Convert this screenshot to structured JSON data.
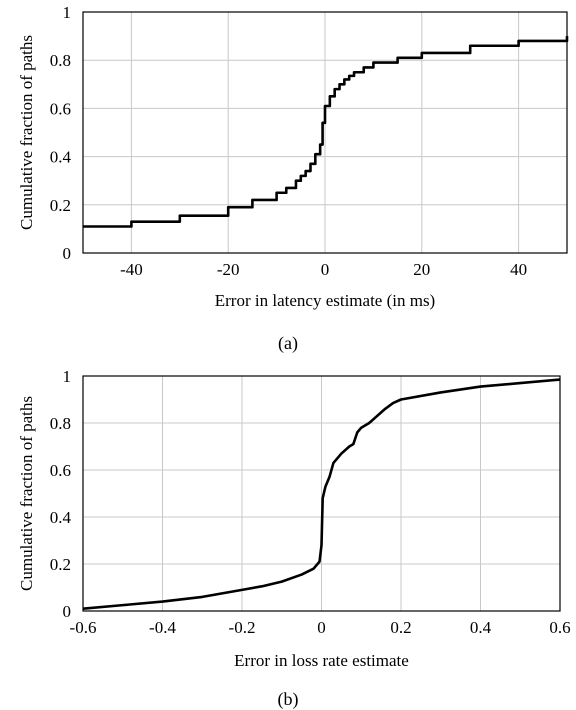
{
  "chart_data": [
    {
      "type": "line",
      "panel_label": "(a)",
      "xlabel": "Error in latency estimate (in ms)",
      "ylabel": "Cumulative fraction of paths",
      "xlim": [
        -50,
        50
      ],
      "ylim": [
        0,
        1
      ],
      "xticks": [
        -40,
        -20,
        0,
        20,
        40
      ],
      "xtick_labels": [
        "-40",
        "-20",
        "0",
        "20",
        "40"
      ],
      "yticks": [
        0,
        0.2,
        0.4,
        0.6,
        0.8,
        1
      ],
      "ytick_labels": [
        "0",
        "0.2",
        "0.4",
        "0.6",
        "0.8",
        "1"
      ],
      "grid": true,
      "step": true,
      "series": [
        {
          "x": [
            -50,
            -40,
            -30,
            -20,
            -15,
            -10,
            -8,
            -6,
            -5,
            -4,
            -3,
            -2,
            -1,
            -0.5,
            0,
            1,
            2,
            3,
            4,
            5,
            6,
            8,
            10,
            15,
            20,
            30,
            40,
            50
          ],
          "y": [
            0.11,
            0.13,
            0.155,
            0.19,
            0.22,
            0.25,
            0.27,
            0.3,
            0.32,
            0.34,
            0.37,
            0.41,
            0.45,
            0.54,
            0.61,
            0.65,
            0.68,
            0.7,
            0.72,
            0.735,
            0.75,
            0.77,
            0.79,
            0.81,
            0.83,
            0.86,
            0.88,
            0.9
          ]
        }
      ]
    },
    {
      "type": "line",
      "panel_label": "(b)",
      "xlabel": "Error in loss rate estimate",
      "ylabel": "Cumulative fraction of paths",
      "xlim": [
        -0.6,
        0.6
      ],
      "ylim": [
        0,
        1
      ],
      "xticks": [
        -0.6,
        -0.4,
        -0.2,
        0,
        0.2,
        0.4,
        0.6
      ],
      "xtick_labels": [
        "-0.6",
        "-0.4",
        "-0.2",
        "0",
        "0.2",
        "0.4",
        "0.6"
      ],
      "yticks": [
        0,
        0.2,
        0.4,
        0.6,
        0.8,
        1
      ],
      "ytick_labels": [
        "0",
        "0.2",
        "0.4",
        "0.6",
        "0.8",
        "1"
      ],
      "grid": true,
      "step": false,
      "series": [
        {
          "x": [
            -0.6,
            -0.5,
            -0.4,
            -0.3,
            -0.2,
            -0.15,
            -0.1,
            -0.05,
            -0.02,
            -0.005,
            0,
            0.003,
            0.01,
            0.02,
            0.03,
            0.05,
            0.07,
            0.08,
            0.09,
            0.1,
            0.12,
            0.14,
            0.16,
            0.18,
            0.2,
            0.3,
            0.4,
            0.5,
            0.6
          ],
          "y": [
            0.01,
            0.025,
            0.04,
            0.06,
            0.09,
            0.105,
            0.125,
            0.155,
            0.18,
            0.21,
            0.28,
            0.48,
            0.53,
            0.57,
            0.63,
            0.67,
            0.7,
            0.71,
            0.76,
            0.78,
            0.8,
            0.83,
            0.86,
            0.885,
            0.9,
            0.93,
            0.955,
            0.97,
            0.985
          ]
        }
      ]
    }
  ]
}
